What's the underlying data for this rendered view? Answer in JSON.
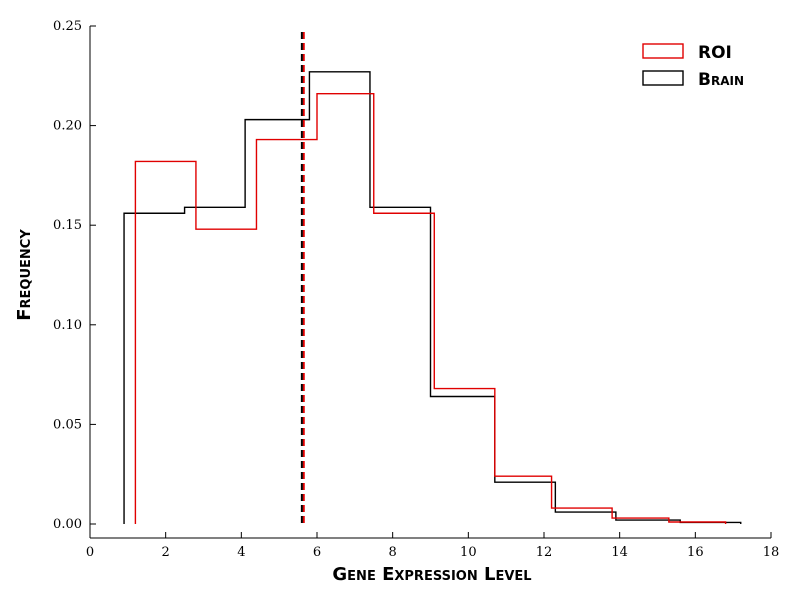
{
  "chart_data": {
    "type": "histogram",
    "xlabel": "Gene Expression Level",
    "ylabel": "Frequency",
    "xlim": [
      0,
      18
    ],
    "ylim": [
      0,
      0.25
    ],
    "xticks": [
      "0",
      "2",
      "4",
      "6",
      "8",
      "10",
      "12",
      "14",
      "16",
      "18"
    ],
    "yticks": [
      "0.00",
      "0.05",
      "0.10",
      "0.15",
      "0.20",
      "0.25"
    ],
    "grid": false,
    "legend_position": "top-right",
    "series": [
      {
        "name": "ROI",
        "color": "#e00000",
        "style": "step",
        "bin_edges": [
          1.2,
          2.8,
          4.4,
          6.0,
          7.5,
          9.1,
          10.7,
          12.2,
          13.8,
          15.3,
          16.8
        ],
        "values": [
          0.182,
          0.148,
          0.193,
          0.216,
          0.156,
          0.068,
          0.024,
          0.008,
          0.003,
          0.001
        ],
        "mean": 5.65
      },
      {
        "name": "Brain",
        "color": "#000000",
        "style": "step",
        "bin_edges": [
          0.9,
          2.5,
          4.1,
          5.8,
          7.4,
          9.0,
          10.7,
          12.3,
          13.9,
          15.6,
          17.2
        ],
        "values": [
          0.156,
          0.159,
          0.203,
          0.227,
          0.159,
          0.064,
          0.021,
          0.006,
          0.002,
          0.0008
        ],
        "mean": 5.6
      }
    ]
  }
}
